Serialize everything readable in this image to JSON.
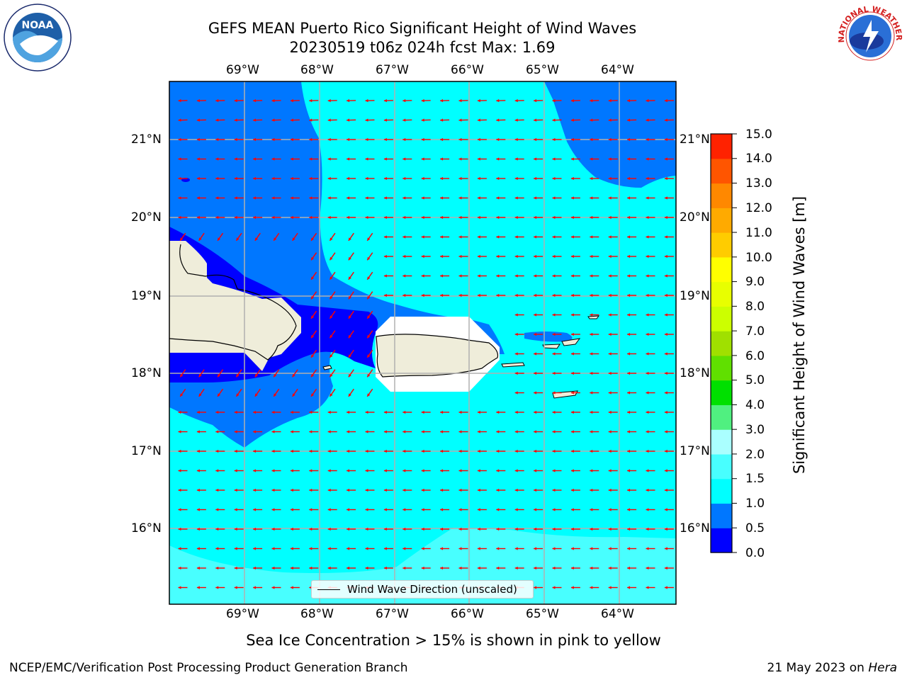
{
  "header": {
    "title_line1": "GEFS MEAN Puerto Rico Significant Height of Wind Waves",
    "title_line2": "20230519 t06z 024h fcst   Max: 1.69"
  },
  "map": {
    "lat_labels": [
      "21°N",
      "20°N",
      "19°N",
      "18°N",
      "17°N",
      "16°N"
    ],
    "lon_labels": [
      "69°W",
      "68°W",
      "67°W",
      "66°W",
      "65°W",
      "64°W"
    ],
    "fill_colors": {
      "band_0_0_5": "#0000ff",
      "band_0_5_1_0": "#0077ff",
      "band_1_0_1_5": "#00ffff",
      "band_1_5_2_0": "#48ffff",
      "land": "#efedda",
      "arrow": "#ff0000"
    }
  },
  "colorbar": {
    "ticks": [
      "15.0",
      "14.0",
      "13.0",
      "12.0",
      "11.0",
      "10.0",
      "9.0",
      "8.0",
      "7.0",
      "6.0",
      "5.0",
      "4.0",
      "3.0",
      "2.0",
      "1.5",
      "1.0",
      "0.5",
      "0.0"
    ],
    "colors": [
      "#0000ff",
      "#0077ff",
      "#00ffff",
      "#48ffff",
      "#aaffff",
      "#50f080",
      "#00e000",
      "#60e000",
      "#a0e000",
      "#ccff00",
      "#e8ff00",
      "#ffff00",
      "#ffcc00",
      "#ffaa00",
      "#ff8800",
      "#ff5500",
      "#ff2200"
    ],
    "label": "Significant Height of Wind Waves [m]"
  },
  "legend": {
    "text": "Wind Wave Direction (unscaled)"
  },
  "note": "Sea Ice Concentration > 15% is shown in pink to yellow",
  "footer": {
    "left": "NCEP/EMC/Verification Post Processing Product Generation Branch",
    "right_date": "21 May 2023 on ",
    "right_machine": "Hera"
  },
  "logos": {
    "noaa_text": "NOAA",
    "nws_text": "NATIONAL WEATHER SERVICE"
  }
}
